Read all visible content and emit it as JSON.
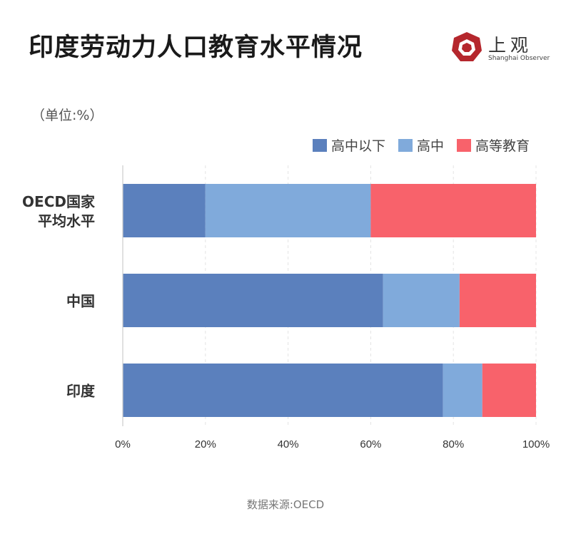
{
  "header": {
    "title": "印度劳动力人口教育水平情况",
    "logo_cn": "上观",
    "logo_en": "Shanghai Observer"
  },
  "unit_label": "（单位:%）",
  "source": "数据来源:OECD",
  "colors": {
    "below_high_school": "#5b80bd",
    "high_school": "#80aadb",
    "higher_education": "#f8626b",
    "logo_red": "#b5272d"
  },
  "chart_data": {
    "type": "bar",
    "orientation": "horizontal",
    "stacked": true,
    "categories": [
      "OECD国家平均水平",
      "中国",
      "印度"
    ],
    "category_lines": [
      [
        "OECD国家",
        "平均水平"
      ],
      [
        "中国"
      ],
      [
        "印度"
      ]
    ],
    "series": [
      {
        "name": "高中以下",
        "values": [
          20,
          63,
          77.5
        ]
      },
      {
        "name": "高中",
        "values": [
          40,
          18.5,
          9.5
        ]
      },
      {
        "name": "高等教育",
        "values": [
          40,
          18.5,
          13
        ]
      }
    ],
    "xlim": [
      0,
      100
    ],
    "x_ticks": [
      "0%",
      "20%",
      "40%",
      "60%",
      "80%",
      "100%"
    ],
    "grid": true,
    "legend_position": "top-right"
  }
}
